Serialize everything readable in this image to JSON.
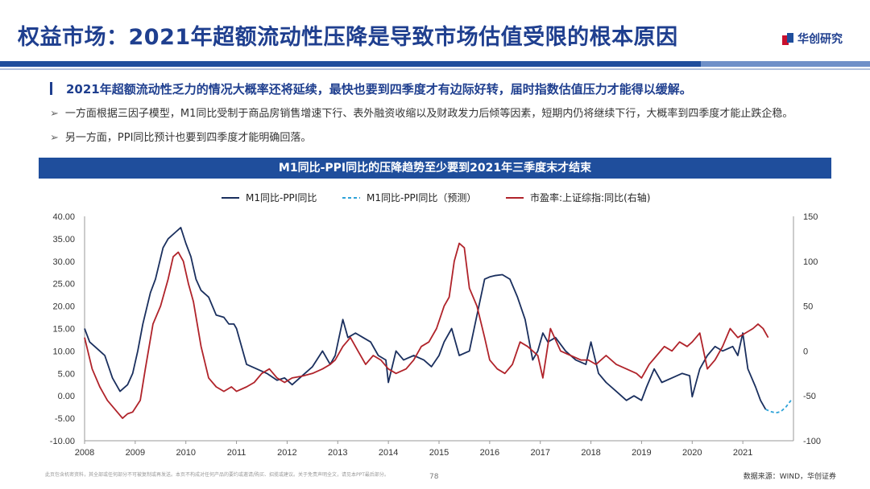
{
  "header": {
    "title": "权益市场：2021年超额流动性压降是导致市场估值受限的根本原因",
    "brand": "华创研究"
  },
  "lead": "2021年超额流动性乏力的情况大概率还将延续，最快也要到四季度才有边际好转，届时指数估值压力才能得以缓解。",
  "bullets": [
    "一方面根据三因子模型，M1同比受制于商品房销售增速下行、表外融资收缩以及财政发力后倾等因素，短期内仍将继续下行，大概率到四季度才能止跌企稳。",
    "另一方面，PPI同比预计也要到四季度才能明确回落。"
  ],
  "bullet_arrow": "➢",
  "footer": {
    "disclaimer": "此页包含机密资料，其全部或任何部分不可被复制或再发送。本页不构成对任何产品的要约或邀请/购买、招揽或建议。关于免责声明全文，请见本PPT最后部分。",
    "page": "78",
    "source": "数据来源：WIND，华创证券"
  },
  "colors": {
    "navy": "#1a2f5e",
    "red": "#b0232a",
    "forecast": "#2ea3d8",
    "brand": "#1f4e9c"
  },
  "chart_data": {
    "type": "line",
    "title": "M1同比-PPI同比的压降趋势至少要到2021年三季度末才结束",
    "x_ticks": [
      "2008",
      "2009",
      "2010",
      "2011",
      "2012",
      "2013",
      "2014",
      "2015",
      "2016",
      "2017",
      "2018",
      "2019",
      "2020",
      "2021"
    ],
    "xlim": [
      2008,
      2022.0
    ],
    "y_left": {
      "min": -10,
      "max": 40,
      "ticks": [
        "-10.00",
        "-5.00",
        "0.00",
        "5.00",
        "10.00",
        "15.00",
        "20.00",
        "25.00",
        "30.00",
        "35.00",
        "40.00"
      ]
    },
    "y_right": {
      "min": -100,
      "max": 150,
      "ticks": [
        "-100",
        "-50",
        "0",
        "50",
        "100",
        "150"
      ]
    },
    "series": [
      {
        "name": "M1同比-PPI同比",
        "axis": "left",
        "style": "solid",
        "color": "#1a2f5e",
        "x": [
          2008.0,
          2008.1,
          2008.25,
          2008.4,
          2008.55,
          2008.7,
          2008.85,
          2008.95,
          2009.05,
          2009.15,
          2009.3,
          2009.4,
          2009.55,
          2009.65,
          2009.8,
          2009.9,
          2010.0,
          2010.1,
          2010.2,
          2010.3,
          2010.45,
          2010.6,
          2010.75,
          2010.85,
          2010.95,
          2011.0,
          2011.2,
          2011.4,
          2011.6,
          2011.8,
          2011.95,
          2012.1,
          2012.3,
          2012.5,
          2012.7,
          2012.85,
          2012.95,
          2013.1,
          2013.2,
          2013.35,
          2013.5,
          2013.65,
          2013.8,
          2013.95,
          2014.0,
          2014.15,
          2014.3,
          2014.5,
          2014.7,
          2014.85,
          2015.0,
          2015.1,
          2015.25,
          2015.4,
          2015.6,
          2015.75,
          2015.9,
          2016.0,
          2016.1,
          2016.25,
          2016.4,
          2016.55,
          2016.7,
          2016.85,
          2016.95,
          2017.05,
          2017.15,
          2017.3,
          2017.5,
          2017.7,
          2017.9,
          2018.0,
          2018.15,
          2018.3,
          2018.5,
          2018.7,
          2018.85,
          2019.0,
          2019.1,
          2019.25,
          2019.4,
          2019.6,
          2019.8,
          2019.95,
          2020.0,
          2020.15,
          2020.3,
          2020.45,
          2020.6,
          2020.8,
          2020.9,
          2021.0,
          2021.1,
          2021.25,
          2021.35,
          2021.45
        ],
        "y": [
          15,
          12,
          10.5,
          9,
          4,
          1,
          2.5,
          5,
          10,
          16,
          23,
          26,
          33,
          35,
          36.5,
          37.5,
          34,
          31,
          26,
          23.5,
          22,
          18,
          17.5,
          16,
          16,
          15,
          7,
          6,
          5,
          3.5,
          4,
          2.5,
          4.5,
          6.5,
          10,
          7,
          9,
          17,
          13,
          14,
          13,
          12,
          9,
          8,
          3,
          10,
          8,
          9,
          8,
          6.5,
          9,
          12,
          15,
          9,
          10,
          18,
          26,
          26.5,
          26.8,
          27,
          26,
          22,
          17,
          8,
          10,
          14,
          12,
          13,
          10,
          8,
          7,
          12,
          5,
          3,
          1,
          -1,
          0,
          -1,
          2,
          6,
          3,
          4,
          5,
          4.5,
          -0.2,
          6,
          9,
          11,
          10,
          11,
          9,
          14,
          6,
          2,
          -1,
          -3
        ]
      },
      {
        "name": "M1同比-PPI同比（预测）",
        "axis": "left",
        "style": "dashed",
        "color": "#2ea3d8",
        "x": [
          2021.45,
          2021.55,
          2021.65,
          2021.75,
          2021.85,
          2021.95
        ],
        "y": [
          -3,
          -3.5,
          -3.8,
          -3.5,
          -2.5,
          -1
        ]
      },
      {
        "name": "市盈率:上证综指:同比(右轴)",
        "axis": "right",
        "style": "solid",
        "color": "#b0232a",
        "x": [
          2008.0,
          2008.15,
          2008.3,
          2008.45,
          2008.6,
          2008.75,
          2008.85,
          2008.95,
          2009.1,
          2009.2,
          2009.35,
          2009.5,
          2009.65,
          2009.75,
          2009.85,
          2009.95,
          2010.05,
          2010.15,
          2010.3,
          2010.45,
          2010.6,
          2010.75,
          2010.9,
          2011.0,
          2011.2,
          2011.35,
          2011.5,
          2011.65,
          2011.8,
          2011.95,
          2012.1,
          2012.3,
          2012.5,
          2012.7,
          2012.85,
          2012.95,
          2013.1,
          2013.25,
          2013.4,
          2013.55,
          2013.7,
          2013.85,
          2014.0,
          2014.15,
          2014.35,
          2014.5,
          2014.65,
          2014.8,
          2014.95,
          2015.1,
          2015.2,
          2015.3,
          2015.4,
          2015.5,
          2015.6,
          2015.75,
          2015.9,
          2016.0,
          2016.15,
          2016.3,
          2016.45,
          2016.6,
          2016.75,
          2016.95,
          2017.05,
          2017.2,
          2017.4,
          2017.6,
          2017.8,
          2017.95,
          2018.1,
          2018.3,
          2018.5,
          2018.7,
          2018.9,
          2019.0,
          2019.15,
          2019.3,
          2019.45,
          2019.6,
          2019.75,
          2019.9,
          2020.0,
          2020.15,
          2020.3,
          2020.45,
          2020.6,
          2020.75,
          2020.9,
          2021.05,
          2021.2,
          2021.3,
          2021.4,
          2021.5
        ],
        "y": [
          15,
          -20,
          -40,
          -55,
          -65,
          -75,
          -70,
          -68,
          -55,
          -20,
          30,
          50,
          80,
          105,
          110,
          100,
          75,
          55,
          5,
          -30,
          -40,
          -45,
          -40,
          -45,
          -40,
          -35,
          -25,
          -20,
          -30,
          -35,
          -30,
          -28,
          -25,
          -20,
          -15,
          -10,
          5,
          15,
          0,
          -15,
          -5,
          -10,
          -20,
          -25,
          -20,
          -10,
          5,
          10,
          25,
          50,
          60,
          100,
          120,
          115,
          70,
          50,
          15,
          -10,
          -20,
          -25,
          -15,
          10,
          5,
          -5,
          -30,
          25,
          0,
          -5,
          -10,
          -10,
          -15,
          -5,
          -15,
          -20,
          -25,
          -30,
          -15,
          -5,
          5,
          0,
          10,
          5,
          10,
          20,
          -20,
          -10,
          5,
          25,
          15,
          20,
          25,
          30,
          25,
          15
        ]
      }
    ],
    "legend": [
      "M1同比-PPI同比",
      "M1同比-PPI同比（预测）",
      "市盈率:上证综指:同比(右轴)"
    ],
    "legend_position": "top"
  }
}
